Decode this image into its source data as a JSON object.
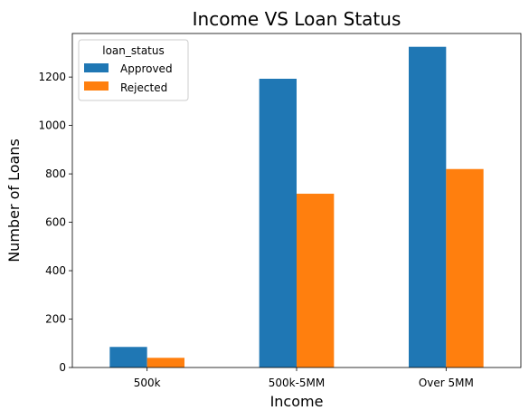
{
  "chart_data": {
    "type": "bar",
    "title": "Income VS Loan Status",
    "xlabel": "Income",
    "ylabel": "Number of Loans",
    "categories": [
      "500k",
      "500k-5MM",
      "Over 5MM"
    ],
    "series": [
      {
        "name": "Approved",
        "color": "#1f77b4",
        "values": [
          85,
          1193,
          1325
        ]
      },
      {
        "name": "Rejected",
        "color": "#ff7f0e",
        "values": [
          40,
          718,
          820
        ]
      }
    ],
    "ylim": [
      0,
      1380
    ],
    "yticks": [
      0,
      200,
      400,
      600,
      800,
      1000,
      1200
    ],
    "grid": false,
    "legend": {
      "title": "loan_status",
      "position": "top-left"
    }
  }
}
